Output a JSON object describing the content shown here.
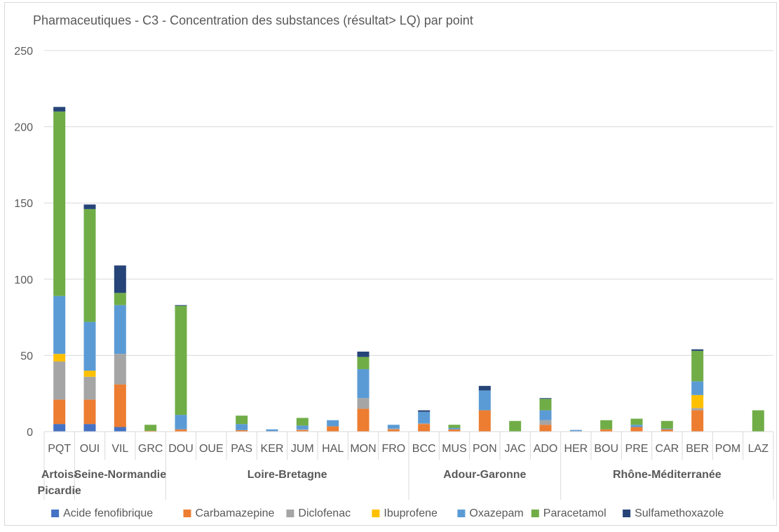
{
  "chart_data": {
    "type": "bar",
    "stacked": true,
    "title": "Pharmaceutiques - C3 - Concentration des substances (résultat> LQ) par point",
    "xlabel": "",
    "ylabel": "",
    "ylim": [
      0,
      250
    ],
    "yticks": [
      "0",
      "50",
      "100",
      "150",
      "200",
      "250"
    ],
    "grid": true,
    "legend_position": "bottom",
    "categories": [
      "PQT",
      "OUI",
      "VIL",
      "GRC",
      "DOU",
      "OUE",
      "PAS",
      "KER",
      "JUM",
      "HAL",
      "MON",
      "FRO",
      "BCC",
      "MUS",
      "PON",
      "JAC",
      "ADO",
      "HER",
      "BOU",
      "PRE",
      "CAR",
      "BER",
      "POM",
      "LAZ"
    ],
    "groups": [
      {
        "label": "Artois-Picardie",
        "label_lines": [
          "Artois-",
          "Picardie"
        ],
        "categories": [
          "PQT"
        ]
      },
      {
        "label": "Seine-Normandie",
        "label_lines": [
          "Seine-Normandie"
        ],
        "categories": [
          "OUI",
          "VIL",
          "GRC"
        ]
      },
      {
        "label": "Loire-Bretagne",
        "label_lines": [
          "Loire-Bretagne"
        ],
        "categories": [
          "DOU",
          "OUE",
          "PAS",
          "KER",
          "JUM",
          "HAL",
          "MON",
          "FRO"
        ]
      },
      {
        "label": "Adour-Garonne",
        "label_lines": [
          "Adour-Garonne"
        ],
        "categories": [
          "BCC",
          "MUS",
          "PON",
          "JAC",
          "ADO"
        ]
      },
      {
        "label": "Rhône-Méditerranée",
        "label_lines": [
          "Rhône-Méditerranée"
        ],
        "categories": [
          "HER",
          "BOU",
          "PRE",
          "CAR",
          "BER",
          "POM",
          "LAZ"
        ]
      }
    ],
    "series": [
      {
        "name": "Acide fenofibrique",
        "color": "#4472c4",
        "values": [
          5,
          5,
          3,
          0,
          0,
          0,
          0,
          0,
          0,
          0,
          0,
          0,
          0,
          0,
          0,
          0,
          0,
          0,
          0,
          0,
          0,
          0,
          0,
          0
        ]
      },
      {
        "name": "Carbamazepine",
        "color": "#ed7d31",
        "values": [
          16,
          16,
          28,
          0.5,
          1.5,
          0,
          1,
          0.3,
          1,
          3.5,
          15,
          1.5,
          5,
          1.5,
          14,
          0,
          4.5,
          0.3,
          1.5,
          3,
          1.5,
          14,
          0,
          0
        ]
      },
      {
        "name": "Diclofenac",
        "color": "#a5a5a5",
        "values": [
          25,
          15,
          20,
          0,
          0,
          0,
          0,
          0,
          0.5,
          0,
          7,
          0.5,
          0.5,
          0,
          0,
          0,
          3,
          0,
          0,
          0,
          0,
          1.5,
          0,
          0
        ]
      },
      {
        "name": "Ibuprofene",
        "color": "#ffc000",
        "values": [
          5,
          4,
          0,
          0,
          0,
          0,
          0,
          0,
          0,
          0,
          0,
          0,
          0,
          0,
          0,
          0,
          0,
          0,
          0,
          0,
          0,
          8.5,
          0,
          0
        ]
      },
      {
        "name": "Oxazepam",
        "color": "#5b9bd5",
        "values": [
          38,
          32,
          32,
          0,
          9.5,
          0,
          4,
          1.2,
          2.5,
          4,
          19,
          2.5,
          7.5,
          1,
          13,
          0,
          6.5,
          0.8,
          0,
          1.5,
          0.5,
          9,
          0,
          0
        ]
      },
      {
        "name": "Paracetamol",
        "color": "#70ad47",
        "values": [
          121,
          74,
          8,
          4,
          71.5,
          0,
          5.5,
          0,
          5,
          0,
          8,
          0,
          0,
          2,
          0,
          7,
          7.5,
          0,
          6,
          4,
          5,
          20,
          0,
          14
        ]
      },
      {
        "name": "Sulfamethoxazole",
        "color": "#264478",
        "values": [
          3,
          3,
          18,
          0,
          0.5,
          0,
          0,
          0,
          0,
          0,
          3.5,
          0,
          1,
          0,
          3,
          0,
          0.5,
          0,
          0,
          0,
          0,
          1,
          0,
          0
        ]
      }
    ]
  }
}
